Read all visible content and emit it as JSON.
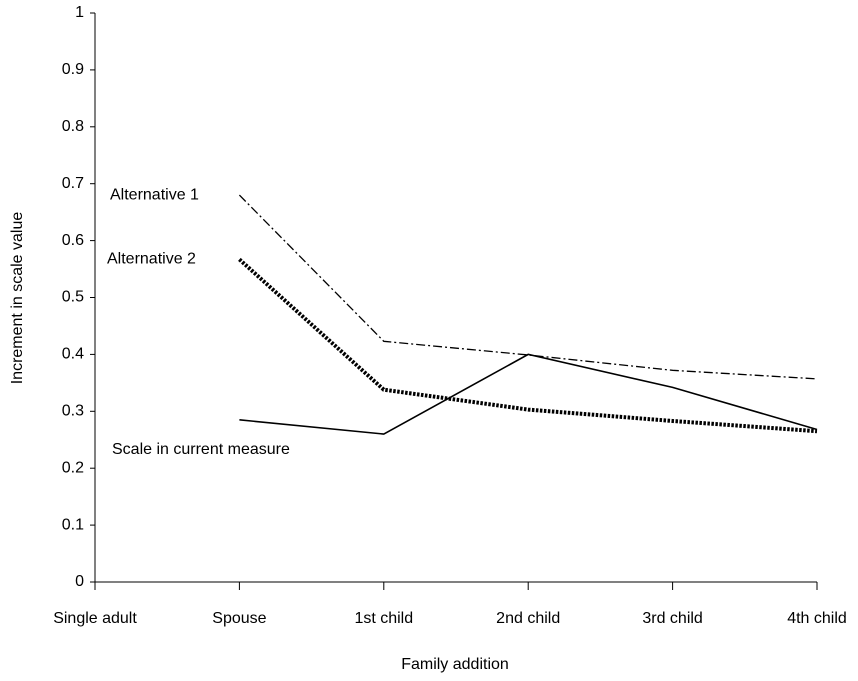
{
  "chart_data": {
    "type": "line",
    "x_label": "Family addition",
    "y_label": "Increment in scale value",
    "categories": [
      "Single adult",
      "Spouse",
      "1st child",
      "2nd child",
      "3rd child",
      "4th child"
    ],
    "series": [
      {
        "name": "Alternative 1",
        "color": "#000000",
        "style": "dash-dot",
        "values": [
          null,
          0.68,
          0.423,
          0.399,
          0.372,
          0.357
        ]
      },
      {
        "name": "Alternative 2",
        "color": "#000000",
        "style": "dotted",
        "values": [
          null,
          0.567,
          0.338,
          0.303,
          0.283,
          0.265
        ]
      },
      {
        "name": "Scale in current measure",
        "color": "#000000",
        "style": "solid",
        "values": [
          null,
          0.285,
          0.26,
          0.4,
          0.342,
          0.268
        ]
      }
    ],
    "ylim": [
      0,
      1
    ],
    "yticks": [
      0,
      0.1,
      0.2,
      0.3,
      0.4,
      0.5,
      0.6,
      0.7,
      0.8,
      0.9,
      1
    ],
    "grid": false
  }
}
